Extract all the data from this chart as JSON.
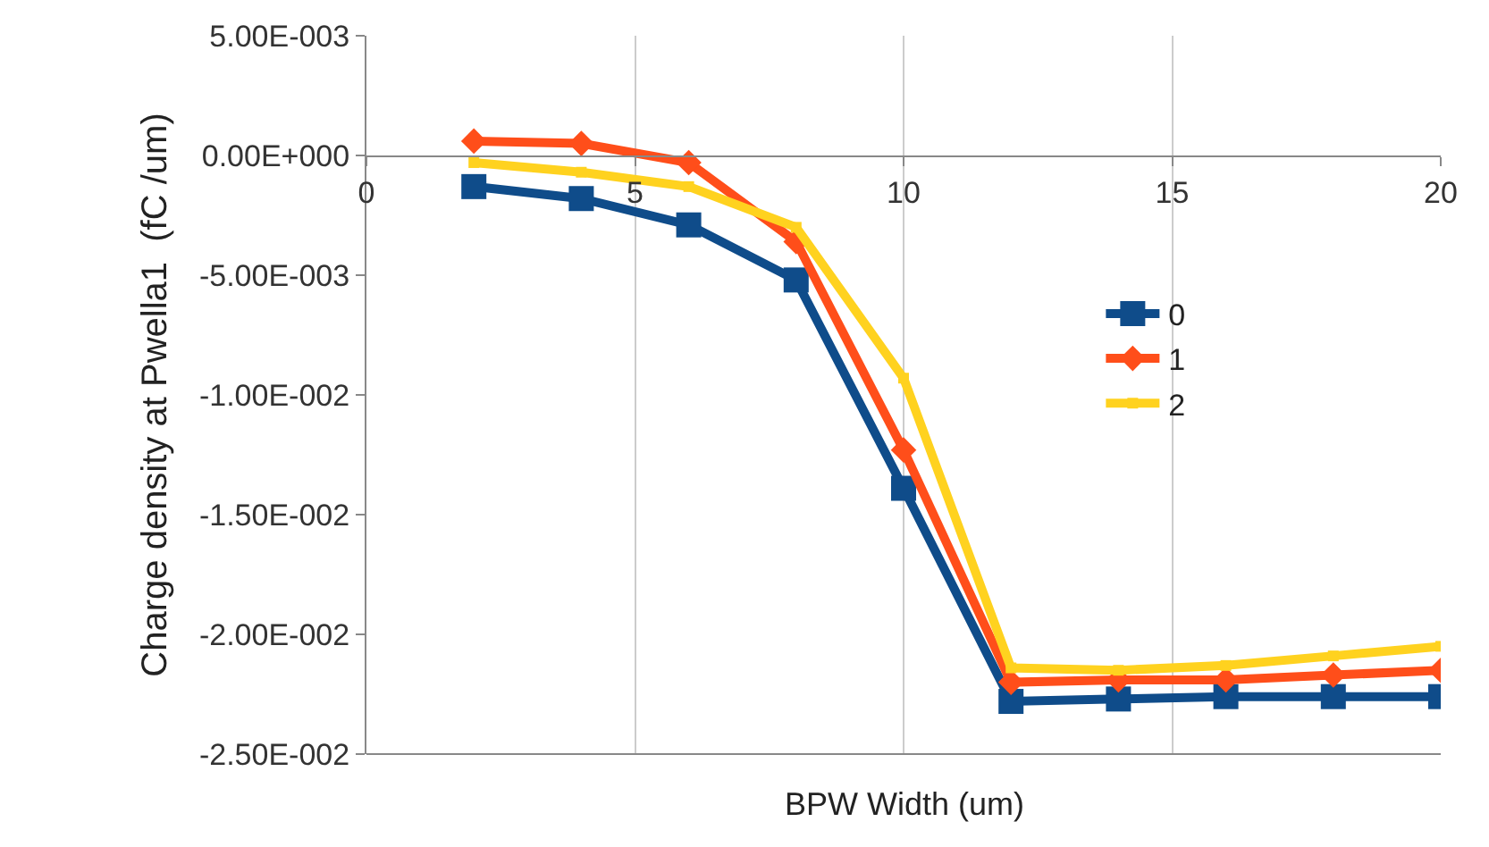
{
  "chart_data": {
    "type": "line",
    "xlabel": "BPW Width (um)",
    "ylabel": "Charge density at Pwella1  (fC /um)",
    "x": [
      2,
      4,
      6,
      8,
      10,
      12,
      14,
      16,
      18,
      20
    ],
    "series": [
      {
        "name": "0",
        "color": "#0f4c8a",
        "marker": "square",
        "values": [
          -0.0013,
          -0.0018,
          -0.0029,
          -0.0052,
          -0.0139,
          -0.0228,
          -0.0227,
          -0.0226,
          -0.0226,
          -0.0226
        ]
      },
      {
        "name": "1",
        "color": "#ff4e1a",
        "marker": "diamond",
        "values": [
          0.0006,
          0.0005,
          -0.0003,
          -0.0036,
          -0.0123,
          -0.022,
          -0.0219,
          -0.0219,
          -0.0217,
          -0.0215
        ]
      },
      {
        "name": "2",
        "color": "#ffd21f",
        "marker": "square",
        "values": [
          -0.0003,
          -0.0007,
          -0.0013,
          -0.003,
          -0.0093,
          -0.0214,
          -0.0215,
          -0.0213,
          -0.0209,
          -0.0205
        ]
      }
    ],
    "xlim": [
      0,
      20
    ],
    "xticks": [
      0,
      5,
      10,
      15,
      20
    ],
    "ylim": [
      -0.025,
      0.005
    ],
    "yticks": [
      {
        "value": 0.005,
        "label": "5.00E-003"
      },
      {
        "value": 0,
        "label": "0.00E+000"
      },
      {
        "value": -0.005,
        "label": "-5.00E-003"
      },
      {
        "value": -0.01,
        "label": "-1.00E-002"
      },
      {
        "value": -0.015,
        "label": "-1.50E-002"
      },
      {
        "value": -0.02,
        "label": "-2.00E-002"
      },
      {
        "value": -0.025,
        "label": "-2.50E-002"
      }
    ],
    "grid": "x",
    "legend": "right",
    "line_style": "solid"
  }
}
